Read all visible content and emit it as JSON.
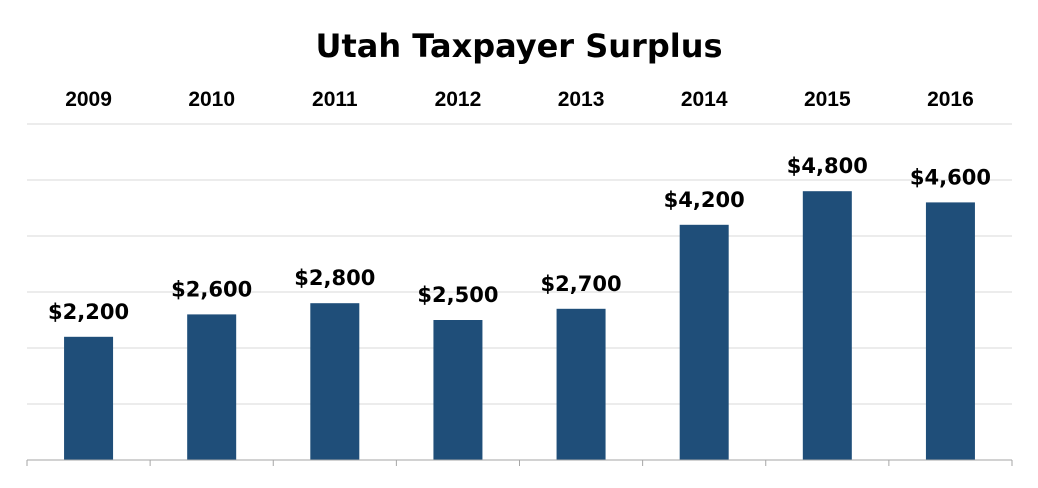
{
  "chart_data": {
    "type": "bar",
    "title": "Utah Taxpayer Surplus",
    "categories": [
      "2009",
      "2010",
      "2011",
      "2012",
      "2013",
      "2014",
      "2015",
      "2016"
    ],
    "values": [
      2200,
      2600,
      2800,
      2500,
      2700,
      4200,
      4800,
      4600
    ],
    "value_labels": [
      "$2,200",
      "$2,600",
      "$2,800",
      "$2,500",
      "$2,700",
      "$4,200",
      "$4,800",
      "$4,600"
    ],
    "xlabel": "",
    "ylabel": "",
    "ylim": [
      0,
      6000
    ],
    "category_labels_position": "top",
    "grid": true,
    "legend": "none",
    "y_axis_labels": "none",
    "bar_color": "#1f4e79",
    "grid_color": "#d9d9d9",
    "axis_color": "#a6a6a6"
  }
}
